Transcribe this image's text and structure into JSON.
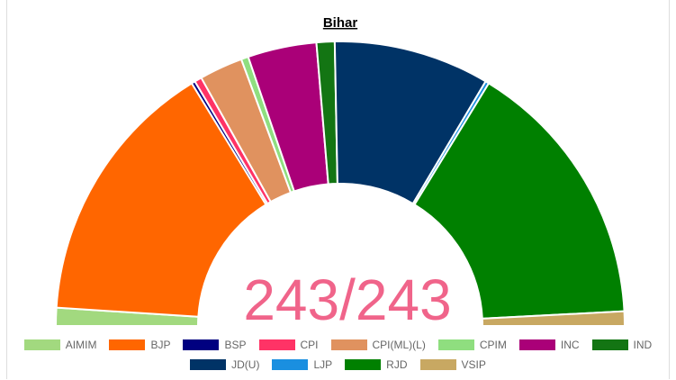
{
  "chart_data": {
    "type": "semicircle",
    "title": "Bihar",
    "center_label": "243/243",
    "categories": [
      "AIMIM",
      "BJP",
      "BSP",
      "CPI",
      "CPI(ML)(L)",
      "CPIM",
      "INC",
      "IND",
      "JD(U)",
      "LJP",
      "RJD",
      "VSIP"
    ],
    "values": [
      5,
      74,
      1,
      2,
      12,
      2,
      19,
      5,
      43,
      1,
      75,
      4
    ],
    "colors": [
      "#a2d97f",
      "#ff6600",
      "#000080",
      "#ff3366",
      "#e0925f",
      "#8fde7f",
      "#aa0078",
      "#137513",
      "#003366",
      "#1a8fe0",
      "#008000",
      "#c8a862"
    ]
  }
}
